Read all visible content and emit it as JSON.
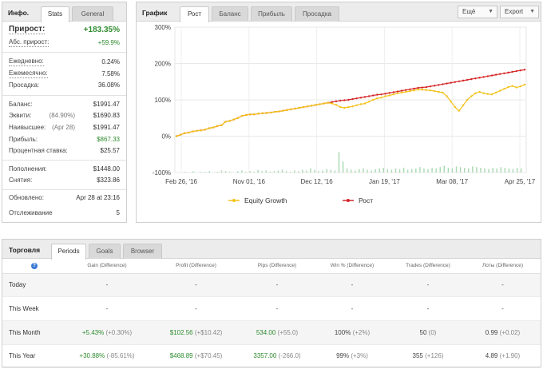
{
  "info": {
    "title": "Инфо.",
    "tabs": [
      "Stats",
      "General"
    ],
    "rows": {
      "growth": {
        "label": "Прирост:",
        "value": "+183.35%"
      },
      "abs_growth": {
        "label": "Абс. прирост:",
        "value": "+59.9%"
      },
      "daily": {
        "label": "Ежедневно:",
        "value": "0.24%"
      },
      "monthly": {
        "label": "Ежемесячно:",
        "value": "7.58%"
      },
      "drawdown": {
        "label": "Просадка:",
        "value": "36.08%"
      },
      "balance": {
        "label": "Баланс:",
        "value": "$1991.47"
      },
      "equity": {
        "label": "Эквити:",
        "note": "(84.90%)",
        "value": "$1690.83"
      },
      "highest": {
        "label": "Наивысшее:",
        "note": "(Apr 28)",
        "value": "$1991.47"
      },
      "profit": {
        "label": "Прибыль:",
        "value": "$867.33"
      },
      "interest": {
        "label": "Процентная ставка:",
        "value": "$25.57"
      },
      "deposits": {
        "label": "Пополнения:",
        "value": "$1448.00"
      },
      "withdrawals": {
        "label": "Снятия:",
        "value": "$323.86"
      },
      "updated": {
        "label": "Обновлено:",
        "value": "Apr 28 at 23:16"
      },
      "tracking": {
        "label": "Отслеживание",
        "value": "5"
      }
    }
  },
  "chart_panel": {
    "title": "График",
    "tabs": [
      "Рост",
      "Баланс",
      "Прибыль",
      "Просадка"
    ],
    "more_label": "Ещё",
    "export_label": "Export",
    "caret": "▼"
  },
  "chart_data": {
    "type": "line",
    "ylim": [
      -100,
      300
    ],
    "yticks": [
      "300%",
      "200%",
      "100%",
      "0%",
      "-100%"
    ],
    "ytick_values": [
      300,
      200,
      100,
      0,
      -100
    ],
    "xticks": [
      "Feb 26, '16",
      "Nov 01, '16",
      "Dec 12, '16",
      "Jan 19, '17",
      "Mar 08, '17",
      "Apr 25, '17"
    ],
    "grid": true,
    "legend_position": "bottom",
    "colors": {
      "growth": "#d62728",
      "equity": "#f2c21a",
      "volume": "#a8d8b0"
    },
    "series": [
      {
        "name": "Рост",
        "values": [
          0,
          4,
          8,
          10,
          13,
          15,
          16,
          18,
          22,
          24,
          28,
          30,
          40,
          42,
          46,
          50,
          56,
          58,
          60,
          60,
          62,
          63,
          64,
          65,
          67,
          68,
          70,
          72,
          74,
          76,
          78,
          80,
          82,
          84,
          86,
          88,
          90,
          92,
          94,
          96,
          98,
          99,
          100,
          102,
          104,
          106,
          108,
          110,
          112,
          114,
          115,
          117,
          119,
          121,
          123,
          125,
          127,
          129,
          131,
          133,
          134,
          135,
          137,
          139,
          141,
          143,
          145,
          147,
          149,
          151,
          153,
          155,
          157,
          159,
          161,
          163,
          165,
          167,
          169,
          171,
          173,
          175,
          177,
          179,
          181,
          183
        ]
      },
      {
        "name": "Equity Growth",
        "values": [
          0,
          4,
          8,
          10,
          13,
          15,
          16,
          18,
          22,
          24,
          28,
          30,
          40,
          42,
          46,
          50,
          56,
          58,
          60,
          60,
          62,
          63,
          64,
          65,
          67,
          68,
          70,
          72,
          74,
          76,
          78,
          80,
          82,
          84,
          86,
          88,
          90,
          92,
          90,
          86,
          80,
          78,
          80,
          82,
          85,
          88,
          90,
          95,
          100,
          104,
          106,
          110,
          112,
          115,
          118,
          120,
          122,
          124,
          126,
          128,
          128,
          127,
          126,
          124,
          122,
          120,
          110,
          95,
          80,
          70,
          85,
          100,
          110,
          118,
          122,
          118,
          116,
          115,
          120,
          125,
          130,
          135,
          138,
          134,
          137,
          142
        ]
      }
    ],
    "volume_series": [
      0,
      0,
      1,
      0,
      2,
      0,
      1,
      1,
      2,
      0,
      1,
      3,
      2,
      1,
      0,
      2,
      3,
      1,
      2,
      1,
      4,
      2,
      3,
      1,
      2,
      3,
      4,
      2,
      1,
      3,
      2,
      4,
      3,
      6,
      4,
      2,
      3,
      5,
      4,
      3,
      30,
      16,
      6,
      4,
      3,
      5,
      6,
      4,
      3,
      5,
      6,
      7,
      5,
      4,
      6,
      5,
      7,
      4,
      5,
      6,
      8,
      6,
      5,
      7,
      6,
      8,
      10,
      7,
      6,
      9,
      8,
      7,
      6,
      9,
      8,
      7,
      6,
      5,
      7,
      6,
      8,
      7,
      6,
      5,
      7,
      6
    ]
  },
  "trade": {
    "title": "Торговля",
    "tabs": [
      "Periods",
      "Goals",
      "Browser"
    ],
    "help_icon": "?",
    "columns": [
      "Gain (Difference)",
      "Profit (Difference)",
      "Pips (Difference)",
      "Win % (Difference)",
      "Trades (Difference)",
      "Лоты (Difference)"
    ],
    "rows": [
      {
        "period": "Today",
        "gain": "-",
        "gain_diff": "",
        "profit": "-",
        "profit_diff": "",
        "pips": "-",
        "pips_diff": "",
        "win": "-",
        "win_diff": "",
        "trades": "-",
        "trades_diff": "",
        "lots": "-",
        "lots_diff": ""
      },
      {
        "period": "This Week",
        "gain": "-",
        "gain_diff": "",
        "profit": "-",
        "profit_diff": "",
        "pips": "-",
        "pips_diff": "",
        "win": "-",
        "win_diff": "",
        "trades": "-",
        "trades_diff": "",
        "lots": "-",
        "lots_diff": ""
      },
      {
        "period": "This Month",
        "gain": "+5.43%",
        "gain_diff": "(+0.30%)",
        "profit": "$102.56",
        "profit_diff": "(+$10.42)",
        "pips": "534.00",
        "pips_diff": "(+55.0)",
        "win": "100%",
        "win_diff": "(+2%)",
        "trades": "50",
        "trades_diff": "(0)",
        "lots": "0.99",
        "lots_diff": "(+0.02)"
      },
      {
        "period": "This Year",
        "gain": "+30.88%",
        "gain_diff": "(-85.61%)",
        "profit": "$468.89",
        "profit_diff": "(+$70.45)",
        "pips": "3357.00",
        "pips_diff": "(-266.0)",
        "win": "99%",
        "win_diff": "(+3%)",
        "trades": "355",
        "trades_diff": "(+126)",
        "lots": "4.89",
        "lots_diff": "(+1.90)"
      }
    ]
  }
}
